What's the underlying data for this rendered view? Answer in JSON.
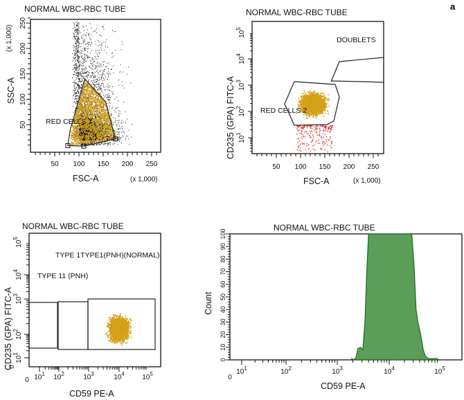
{
  "panel_letter": "a",
  "chart_data": [
    {
      "type": "scatter",
      "title": "NORMAL WBC-RBC TUBE",
      "xlabel": "FSC-A",
      "xunit": "(x 1,000)",
      "ylabel": "SSC-A",
      "yunit": "(x 1,000)",
      "xlim": [
        0,
        262
      ],
      "ylim": [
        0,
        257
      ],
      "xticks": [
        50,
        100,
        150,
        200,
        250
      ],
      "yticks": [
        50,
        100,
        150,
        200,
        250
      ],
      "gates": [
        {
          "name": "RED CELLS 1",
          "polygon": [
            [
              77,
              9
            ],
            [
              110,
              8
            ],
            [
              175,
              22
            ],
            [
              155,
              95
            ],
            [
              112,
              140
            ],
            [
              82,
              40
            ]
          ],
          "color": "#d4a017"
        }
      ],
      "populations": [
        {
          "label": "RED CELLS 1",
          "color": "#d4a017",
          "fsc_range": [
            80,
            170
          ],
          "ssc_range": [
            10,
            140
          ]
        },
        {
          "color": "#111111",
          "fsc_range": [
            80,
            262
          ],
          "ssc_range": [
            10,
            257
          ]
        }
      ]
    },
    {
      "type": "scatter",
      "title": "NORMAL WBC-RBC TUBE",
      "xlabel": "FSC-A",
      "xunit": "(x 1,000)",
      "ylabel": "CD235 (GPA) FITC-A",
      "xlim": [
        0,
        262
      ],
      "yscale": "log",
      "xticks": [
        50,
        100,
        150,
        200,
        250
      ],
      "yticks": [
        "10^1",
        "10^2",
        "10^3",
        "10^4",
        "10^5"
      ],
      "gates": [
        {
          "name": "RED CELLS 2",
          "color": "#d4a017"
        },
        {
          "name": "DOUBLETS"
        }
      ],
      "populations": [
        {
          "label": "RED CELLS 2",
          "color": "#d4a017",
          "fsc_range": [
            85,
            165
          ],
          "gpa_range": [
            40,
            1000
          ]
        },
        {
          "color": "#e02020",
          "fsc_range": [
            90,
            150
          ],
          "gpa_range": [
            3,
            40
          ]
        }
      ]
    },
    {
      "type": "scatter",
      "title": "NORMAL WBC-RBC TUBE",
      "xlabel": "CD59 PE-A",
      "ylabel": "CD235 (GPA) FITC-A",
      "xscale": "biexponential",
      "yscale": "biexponential",
      "xticks": [
        "0",
        "10^1",
        "10^2",
        "10^3",
        "10^4",
        "10^5"
      ],
      "yticks": [
        "0",
        "10^1",
        "10^2",
        "10^3",
        "10^4",
        "10^5"
      ],
      "gates": [
        {
          "name": "TYPE 11 (PNH)"
        },
        {
          "name": "TYPE 1 (PNH)"
        },
        {
          "name": "TYPE 111 (NORMAL)"
        }
      ],
      "gate_label_overlap_text": "TYPE 1TYPE1(PNH)(NORMAL)",
      "populations": [
        {
          "color": "#d4a017",
          "cd59_range": [
            2000,
            40000
          ],
          "gpa_range": [
            40,
            1000
          ]
        }
      ]
    },
    {
      "type": "area",
      "title": "NORMAL WBC-RBC TUBE",
      "xlabel": "CD59 PE-A",
      "ylabel": "Count",
      "xscale": "log",
      "ylim": [
        0,
        100
      ],
      "xticks": [
        "0",
        "10^1",
        "10^2",
        "10^3",
        "10^4",
        "10^5"
      ],
      "yticks": [
        0,
        10,
        20,
        30,
        40,
        50,
        60,
        70,
        80,
        90,
        100
      ],
      "color": "#5a9e5a",
      "x": [
        1900,
        2100,
        2300,
        2500,
        2800,
        3100,
        3400,
        3700,
        4000,
        4300,
        10000,
        25000,
        28000,
        31000,
        34000,
        37000,
        42000,
        47000,
        52000,
        60000,
        70000,
        90000
      ],
      "values": [
        1,
        0,
        2,
        9,
        10,
        8,
        30,
        70,
        100,
        100,
        100,
        100,
        100,
        75,
        40,
        30,
        20,
        8,
        3,
        1,
        1,
        1
      ]
    }
  ]
}
